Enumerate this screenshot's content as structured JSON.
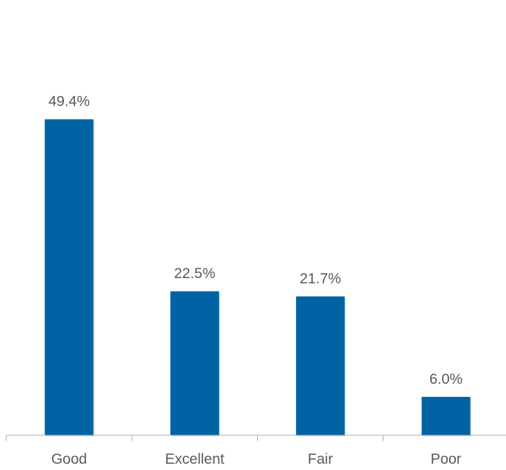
{
  "chart_data": {
    "type": "bar",
    "title": "",
    "xlabel": "",
    "ylabel": "",
    "categories": [
      "Good",
      "Excellent",
      "Fair",
      "Poor"
    ],
    "values": [
      49.4,
      22.5,
      21.7,
      6.0
    ],
    "value_labels": [
      "49.4%",
      "22.5%",
      "21.7%",
      "6.0%"
    ],
    "ylim": [
      0,
      60
    ],
    "grid": false,
    "legend": "none",
    "bar_color": "#0064A4",
    "label_color": "#595959",
    "axis_color": "#A6A6A6"
  }
}
